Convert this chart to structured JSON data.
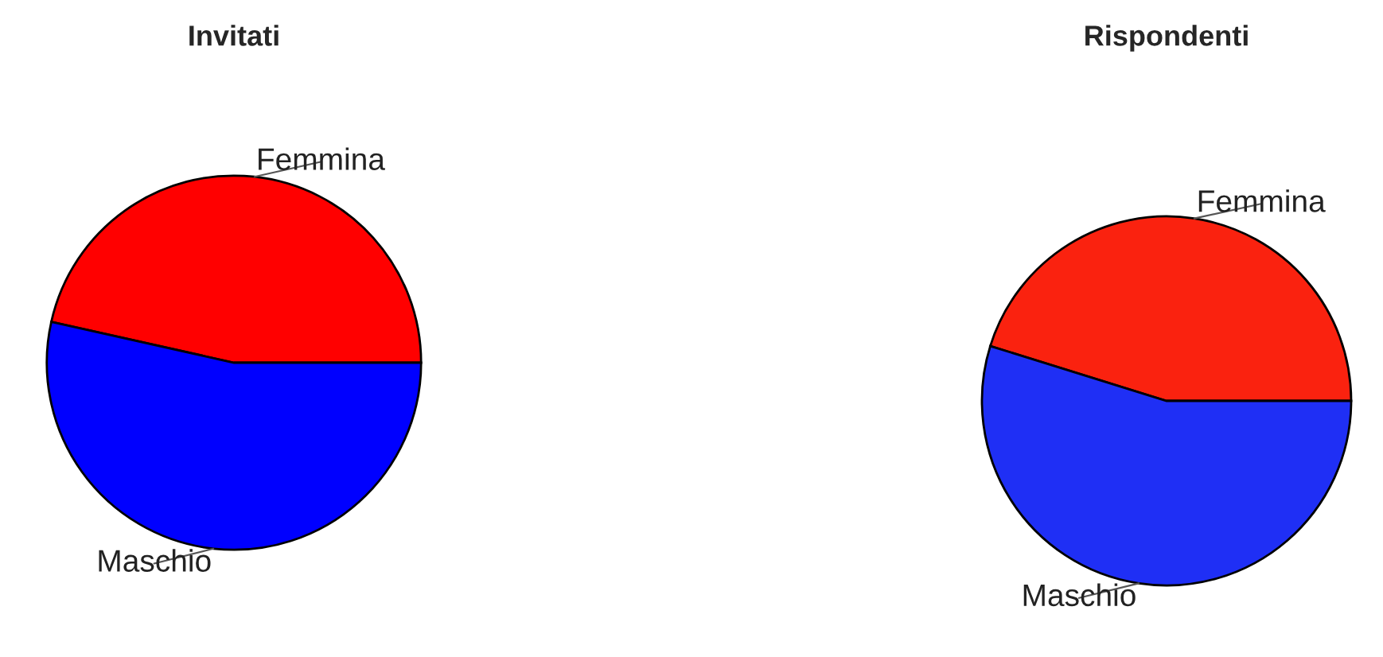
{
  "chart_data": [
    {
      "type": "pie",
      "title": "Invitati",
      "categories": [
        "Femmina",
        "Maschio"
      ],
      "values": [
        46.5,
        53.5
      ],
      "colors": [
        "#ff0000",
        "#0000ff"
      ]
    },
    {
      "type": "pie",
      "title": "Rispondenti",
      "categories": [
        "Femmina",
        "Maschio"
      ],
      "values": [
        45.2,
        54.8
      ],
      "colors": [
        "#fa220f",
        "#1f2ff5"
      ]
    }
  ]
}
